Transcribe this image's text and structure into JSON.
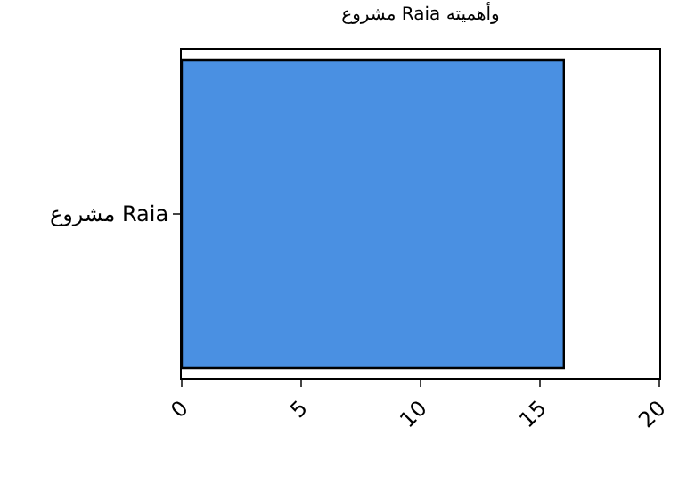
{
  "chart_data": {
    "type": "bar",
    "orientation": "horizontal",
    "title": "مشروع Raia وأهميته",
    "categories": [
      "مشروع Raia"
    ],
    "values": [
      16
    ],
    "color": "#4a90e2",
    "xlim": [
      0,
      20
    ],
    "xticks": [
      0,
      5,
      10,
      15,
      20
    ]
  }
}
